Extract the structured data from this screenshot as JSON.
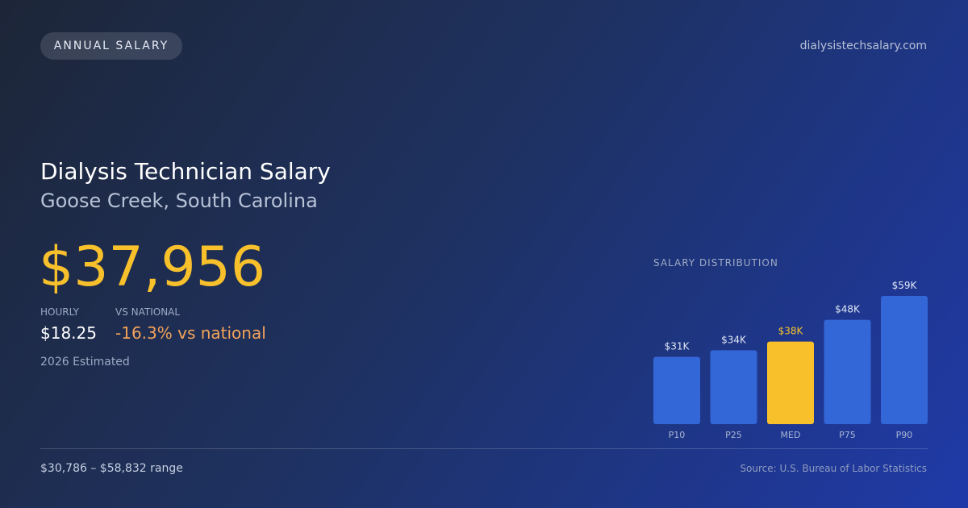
{
  "badge": "ANNUAL SALARY",
  "domain": "dialysistechsalary.com",
  "title": "Dialysis Technician Salary",
  "subtitle": "Goose Creek, South Carolina",
  "salary": "$37,956",
  "hourly_label": "HOURLY",
  "hourly_value": "$18.25",
  "national_label": "VS NATIONAL",
  "national_value": "-16.3% vs national",
  "estimate_note": "2026 Estimated",
  "range": "$30,786 – $58,832 range",
  "source": "Source: U.S. Bureau of Labor Statistics",
  "chart_data": {
    "type": "bar",
    "title": "SALARY DISTRIBUTION",
    "categories": [
      "P10",
      "P25",
      "MED",
      "P75",
      "P90"
    ],
    "values": [
      31,
      34,
      38,
      48,
      59
    ],
    "value_labels": [
      "$31K",
      "$34K",
      "$38K",
      "$48K",
      "$59K"
    ],
    "colors": [
      "#3366d6",
      "#3366d6",
      "#f8c12c",
      "#3366d6",
      "#3366d6"
    ]
  }
}
